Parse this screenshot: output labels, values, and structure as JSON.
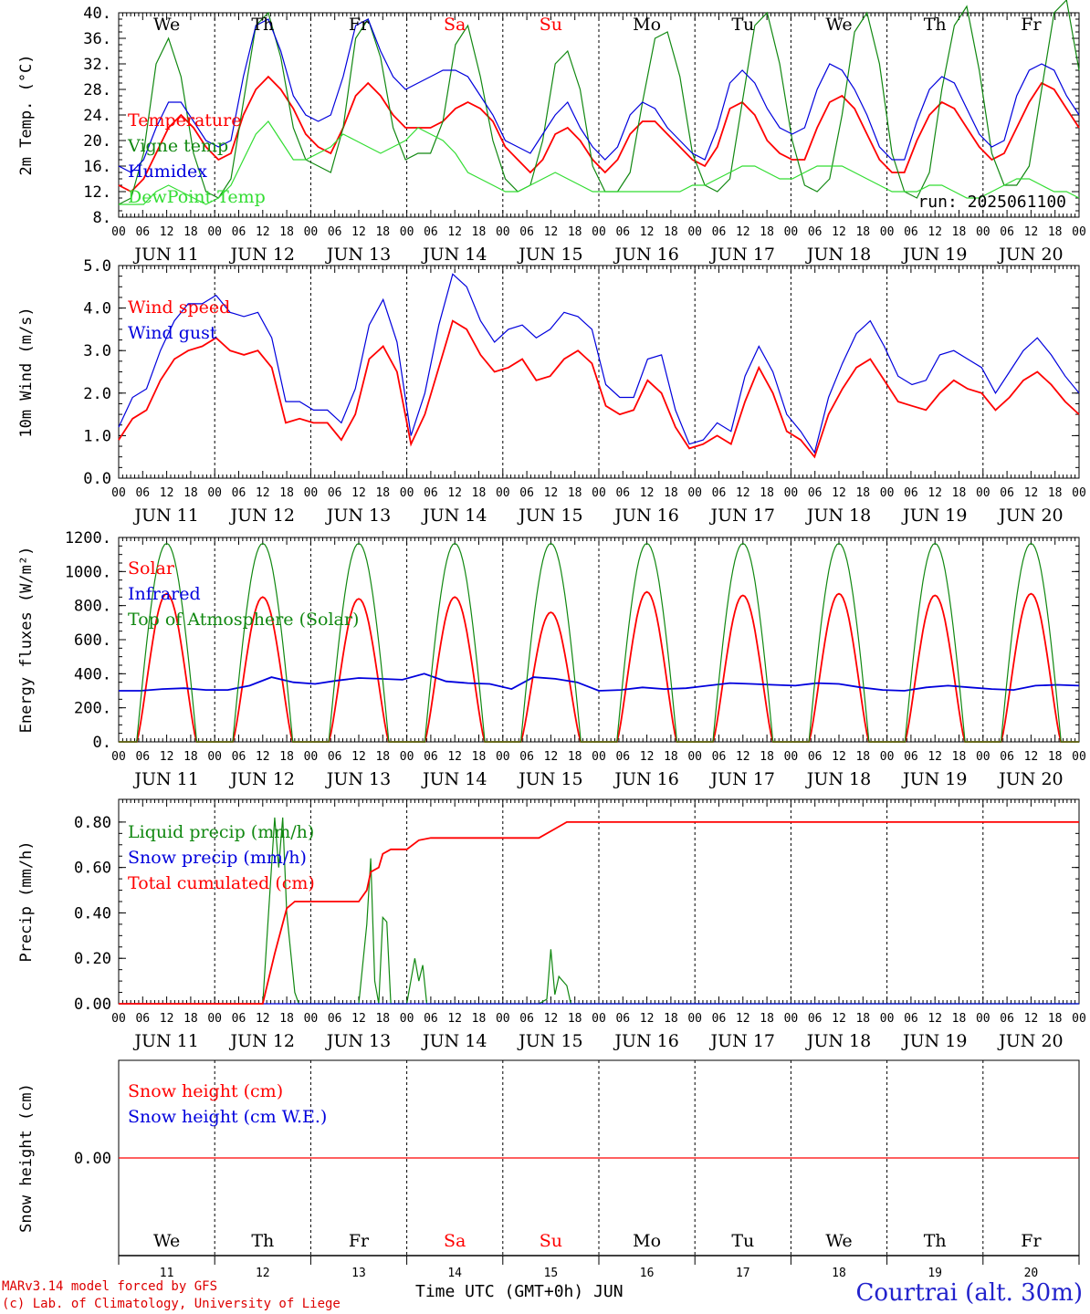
{
  "colors": {
    "red": "#ff0000",
    "blue": "#0000dd",
    "green": "#118811",
    "lightgreen": "#33dd33",
    "weekend": "#ff0000",
    "station": "#2222cc",
    "footer": "#dd0000"
  },
  "day_names": [
    "We",
    "Th",
    "Fr",
    "Sa",
    "Su",
    "Mo",
    "Tu",
    "We",
    "Th",
    "Fr"
  ],
  "weekend_flags": [
    false,
    false,
    false,
    true,
    true,
    false,
    false,
    false,
    false,
    false
  ],
  "date_labels": [
    "JUN 11",
    "JUN 12",
    "JUN 13",
    "JUN 14",
    "JUN 15",
    "JUN 16",
    "JUN 17",
    "JUN 18",
    "JUN 19",
    "JUN 20"
  ],
  "day_numbers": [
    "11",
    "12",
    "13",
    "14",
    "15",
    "16",
    "17",
    "18",
    "19",
    "20"
  ],
  "hour_labels": [
    "00",
    "06",
    "12",
    "18"
  ],
  "hour_end_label": "00",
  "run_label": "run: 2025061100",
  "footer": {
    "line1": "MARv3.14 model forced by GFS",
    "line2": "(c) Lab. of Climatology, University of Liege",
    "xaxis_title": "Time UTC (GMT+0h) JUN",
    "station": "Courtrai (alt. 30m)"
  },
  "chart_data": [
    {
      "type": "line",
      "id": "temperature",
      "ylabel": "2m Temp. (°C)",
      "ylim": [
        8,
        40
      ],
      "yticks": [
        "8.",
        "12.",
        "16.",
        "20.",
        "24.",
        "28.",
        "32.",
        "36.",
        "40."
      ],
      "x_unit": "hours since JUN 11 00 UTC",
      "step_hours": 3,
      "series": [
        {
          "name": "Temperature",
          "color": "#ff0000",
          "values": [
            13,
            12,
            14,
            18,
            22,
            24,
            22,
            19,
            17,
            18,
            24,
            28,
            30,
            28,
            25,
            21,
            19,
            18,
            22,
            27,
            29,
            27,
            24,
            22,
            22,
            22,
            23,
            25,
            26,
            25,
            23,
            19,
            17,
            15,
            17,
            21,
            22,
            20,
            17,
            15,
            17,
            21,
            23,
            23,
            21,
            19,
            17,
            16,
            19,
            25,
            26,
            24,
            20,
            18,
            17,
            17,
            22,
            26,
            27,
            25,
            21,
            17,
            15,
            15,
            20,
            24,
            26,
            25,
            22,
            19,
            17,
            18,
            22,
            26,
            29,
            28,
            25,
            22
          ]
        },
        {
          "name": "Vigne temp",
          "color": "#118811",
          "values": [
            10,
            11,
            18,
            32,
            36,
            30,
            18,
            12,
            11,
            14,
            26,
            38,
            40,
            33,
            22,
            17,
            16,
            15,
            22,
            36,
            39,
            33,
            22,
            17,
            18,
            18,
            23,
            35,
            38,
            30,
            20,
            14,
            12,
            13,
            20,
            32,
            34,
            28,
            16,
            12,
            12,
            15,
            26,
            36,
            37,
            30,
            18,
            13,
            12,
            14,
            26,
            38,
            40,
            32,
            20,
            13,
            12,
            14,
            24,
            37,
            40,
            32,
            18,
            12,
            11,
            15,
            28,
            38,
            41,
            31,
            18,
            13,
            13,
            16,
            28,
            40,
            42,
            31
          ]
        },
        {
          "name": "Humidex",
          "color": "#0000dd",
          "values": [
            16,
            15,
            17,
            22,
            26,
            26,
            23,
            20,
            19,
            20,
            30,
            38,
            39,
            34,
            27,
            24,
            23,
            24,
            30,
            38,
            39,
            34,
            30,
            28,
            29,
            30,
            31,
            31,
            30,
            27,
            24,
            20,
            19,
            18,
            21,
            24,
            26,
            22,
            19,
            17,
            19,
            24,
            26,
            25,
            22,
            20,
            18,
            17,
            22,
            29,
            31,
            29,
            25,
            22,
            21,
            22,
            28,
            32,
            31,
            28,
            24,
            19,
            17,
            17,
            23,
            28,
            30,
            29,
            25,
            21,
            19,
            20,
            27,
            31,
            32,
            31,
            27,
            24
          ]
        },
        {
          "name": "DewPoint Temp",
          "color": "#33dd33",
          "values": [
            10,
            10,
            10,
            12,
            13,
            12,
            11,
            10,
            11,
            13,
            17,
            21,
            23,
            20,
            17,
            17,
            18,
            19,
            21,
            20,
            19,
            18,
            19,
            20,
            22,
            21,
            20,
            18,
            15,
            14,
            13,
            12,
            12,
            13,
            14,
            15,
            14,
            13,
            12,
            12,
            12,
            12,
            12,
            12,
            12,
            12,
            13,
            13,
            14,
            15,
            16,
            16,
            15,
            14,
            14,
            15,
            16,
            16,
            16,
            15,
            14,
            13,
            12,
            12,
            12,
            13,
            13,
            12,
            11,
            11,
            12,
            13,
            14,
            14,
            13,
            12,
            12,
            11
          ]
        }
      ]
    },
    {
      "type": "line",
      "id": "wind",
      "ylabel": "10m Wind (m/s)",
      "ylim": [
        0,
        5
      ],
      "yticks": [
        "0.0",
        "1.0",
        "2.0",
        "3.0",
        "4.0",
        "5.0"
      ],
      "x_unit": "hours since JUN 11 00 UTC",
      "step_hours": 3,
      "series": [
        {
          "name": "Wind speed",
          "color": "#ff0000",
          "values": [
            0.9,
            1.4,
            1.6,
            2.3,
            2.8,
            3.0,
            3.1,
            3.3,
            3.0,
            2.9,
            3.0,
            2.6,
            1.3,
            1.4,
            1.3,
            1.3,
            0.9,
            1.5,
            2.8,
            3.1,
            2.5,
            0.8,
            1.5,
            2.6,
            3.7,
            3.5,
            2.9,
            2.5,
            2.6,
            2.8,
            2.3,
            2.4,
            2.8,
            3.0,
            2.7,
            1.7,
            1.5,
            1.6,
            2.3,
            2.0,
            1.2,
            0.7,
            0.8,
            1.0,
            0.8,
            1.8,
            2.6,
            2.0,
            1.1,
            0.9,
            0.5,
            1.5,
            2.1,
            2.6,
            2.8,
            2.3,
            1.8,
            1.7,
            1.6,
            2.0,
            2.3,
            2.1,
            2.0,
            1.6,
            1.9,
            2.3,
            2.5,
            2.2,
            1.8,
            1.5
          ]
        },
        {
          "name": "Wind gust",
          "color": "#0000dd",
          "values": [
            1.2,
            1.9,
            2.1,
            3.0,
            3.7,
            4.1,
            4.1,
            4.3,
            3.9,
            3.8,
            3.9,
            3.3,
            1.8,
            1.8,
            1.6,
            1.6,
            1.3,
            2.1,
            3.6,
            4.2,
            3.2,
            1.0,
            2.0,
            3.6,
            4.8,
            4.5,
            3.7,
            3.2,
            3.5,
            3.6,
            3.3,
            3.5,
            3.9,
            3.8,
            3.5,
            2.2,
            1.9,
            1.9,
            2.8,
            2.9,
            1.6,
            0.8,
            0.9,
            1.3,
            1.1,
            2.4,
            3.1,
            2.5,
            1.5,
            1.1,
            0.6,
            1.9,
            2.7,
            3.4,
            3.7,
            3.1,
            2.4,
            2.2,
            2.3,
            2.9,
            3.0,
            2.8,
            2.6,
            2.0,
            2.5,
            3.0,
            3.3,
            2.9,
            2.4,
            2.0
          ]
        }
      ]
    },
    {
      "type": "line",
      "id": "energy",
      "ylabel": "Energy fluxes (W/m²)",
      "ylim": [
        0,
        1200
      ],
      "yticks": [
        "0.",
        "200.",
        "400.",
        "600.",
        "800.",
        "1000.",
        "1200."
      ],
      "x_unit": "hours since JUN 11 00 UTC",
      "daily_peak_hour": 12,
      "series": [
        {
          "name": "Solar",
          "color": "#ff0000",
          "daily_peaks": [
            870,
            850,
            840,
            850,
            760,
            880,
            860,
            870,
            860,
            870
          ]
        },
        {
          "name": "Infrared",
          "color": "#0000dd",
          "values": [
            300,
            300,
            310,
            315,
            305,
            305,
            330,
            380,
            350,
            340,
            360,
            375,
            370,
            365,
            400,
            355,
            345,
            340,
            310,
            380,
            370,
            350,
            300,
            305,
            320,
            310,
            315,
            330,
            345,
            340,
            335,
            330,
            345,
            340,
            320,
            305,
            300,
            320,
            330,
            320,
            310,
            305,
            330,
            335,
            330
          ]
        },
        {
          "name": "Top of Atmosphere (Solar)",
          "color": "#118811",
          "daily_peaks": [
            1165,
            1165,
            1165,
            1165,
            1165,
            1165,
            1165,
            1165,
            1165,
            1165
          ]
        }
      ]
    },
    {
      "type": "line",
      "id": "precip",
      "ylabel": "Precip (mm/h)",
      "ylim": [
        0,
        0.9
      ],
      "yticks": [
        "0.00",
        "0.20",
        "0.40",
        "0.60",
        "0.80"
      ],
      "x_unit": "hours since JUN 11 00 UTC",
      "series": [
        {
          "name": "Liquid precip (mm/h)",
          "color": "#118811",
          "points": [
            [
              36,
              0
            ],
            [
              39,
              0.82
            ],
            [
              40,
              0.6
            ],
            [
              41,
              0.82
            ],
            [
              42,
              0.4
            ],
            [
              44,
              0.05
            ],
            [
              45,
              0
            ],
            [
              60,
              0
            ],
            [
              62,
              0.35
            ],
            [
              63,
              0.64
            ],
            [
              64,
              0.1
            ],
            [
              65,
              0
            ],
            [
              66,
              0.38
            ],
            [
              67,
              0.36
            ],
            [
              68,
              0
            ],
            [
              72,
              0
            ],
            [
              74,
              0.2
            ],
            [
              75,
              0.1
            ],
            [
              76,
              0.17
            ],
            [
              77,
              0
            ],
            [
              105,
              0
            ],
            [
              107,
              0.02
            ],
            [
              108,
              0.24
            ],
            [
              109,
              0.04
            ],
            [
              110,
              0.12
            ],
            [
              111,
              0.1
            ],
            [
              112,
              0.08
            ],
            [
              113,
              0
            ],
            [
              240,
              0
            ]
          ]
        },
        {
          "name": "Snow precip (mm/h)",
          "color": "#0000dd",
          "points": [
            [
              0,
              0
            ],
            [
              240,
              0
            ]
          ]
        },
        {
          "name": "Total cumulated (cm)",
          "color": "#ff0000",
          "points": [
            [
              0,
              0
            ],
            [
              36,
              0
            ],
            [
              39,
              0.22
            ],
            [
              42,
              0.42
            ],
            [
              44,
              0.45
            ],
            [
              60,
              0.45
            ],
            [
              62,
              0.5
            ],
            [
              63,
              0.58
            ],
            [
              65,
              0.6
            ],
            [
              66,
              0.66
            ],
            [
              68,
              0.68
            ],
            [
              72,
              0.68
            ],
            [
              75,
              0.72
            ],
            [
              78,
              0.73
            ],
            [
              105,
              0.73
            ],
            [
              109,
              0.77
            ],
            [
              112,
              0.8
            ],
            [
              240,
              0.8
            ]
          ]
        }
      ]
    },
    {
      "type": "line",
      "id": "snow",
      "ylabel": "Snow height (cm)",
      "ylim": [
        -1,
        1
      ],
      "yticks": [
        "0.00"
      ],
      "x_unit": "hours since JUN 11 00 UTC",
      "series": [
        {
          "name": "Snow height (cm)",
          "color": "#ff0000",
          "points": [
            [
              0,
              0
            ],
            [
              240,
              0
            ]
          ]
        },
        {
          "name": "Snow height (cm W.E.)",
          "color": "#0000dd",
          "points": []
        }
      ]
    }
  ]
}
